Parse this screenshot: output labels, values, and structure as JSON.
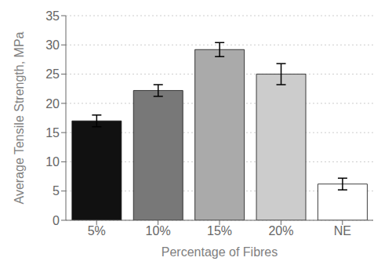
{
  "chart_data": {
    "type": "bar",
    "xlabel": "Percentage of Fibres",
    "ylabel": "Average Tensile Strength, MPa",
    "categories": [
      "5%",
      "10%",
      "15%",
      "20%",
      "NE"
    ],
    "values": [
      17.0,
      22.2,
      29.2,
      25.0,
      6.2
    ],
    "errors": [
      1.0,
      1.0,
      1.2,
      1.8,
      1.0
    ],
    "colors": [
      "#111111",
      "#787878",
      "#aaaaaa",
      "#cccccc",
      "#ffffff"
    ],
    "ylim": [
      0,
      35
    ],
    "yticks": [
      0,
      5,
      10,
      15,
      20,
      25,
      30,
      35
    ],
    "grid": true
  }
}
